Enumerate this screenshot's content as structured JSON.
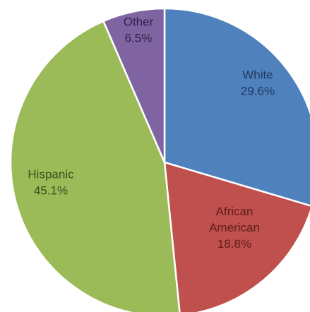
{
  "chart_data": {
    "type": "pie",
    "title": "",
    "slices": [
      {
        "label_lines": [
          "White"
        ],
        "value_label": "29.6%",
        "value": 29.6,
        "color": "#4F81BD",
        "label_color": "#1F3B63"
      },
      {
        "label_lines": [
          "African",
          "American"
        ],
        "value_label": "18.8%",
        "value": 18.8,
        "color": "#C0504D",
        "label_color": "#5E1E1C"
      },
      {
        "label_lines": [
          "Hispanic"
        ],
        "value_label": "45.1%",
        "value": 45.1,
        "color": "#9BBB59",
        "label_color": "#3B4F1C"
      },
      {
        "label_lines": [
          "Other"
        ],
        "value_label": "6.5%",
        "value": 6.5,
        "color": "#8064A2",
        "label_color": "#2E1F44"
      }
    ],
    "start_angle_deg": 0,
    "direction": "clockwise",
    "legend": "none"
  }
}
